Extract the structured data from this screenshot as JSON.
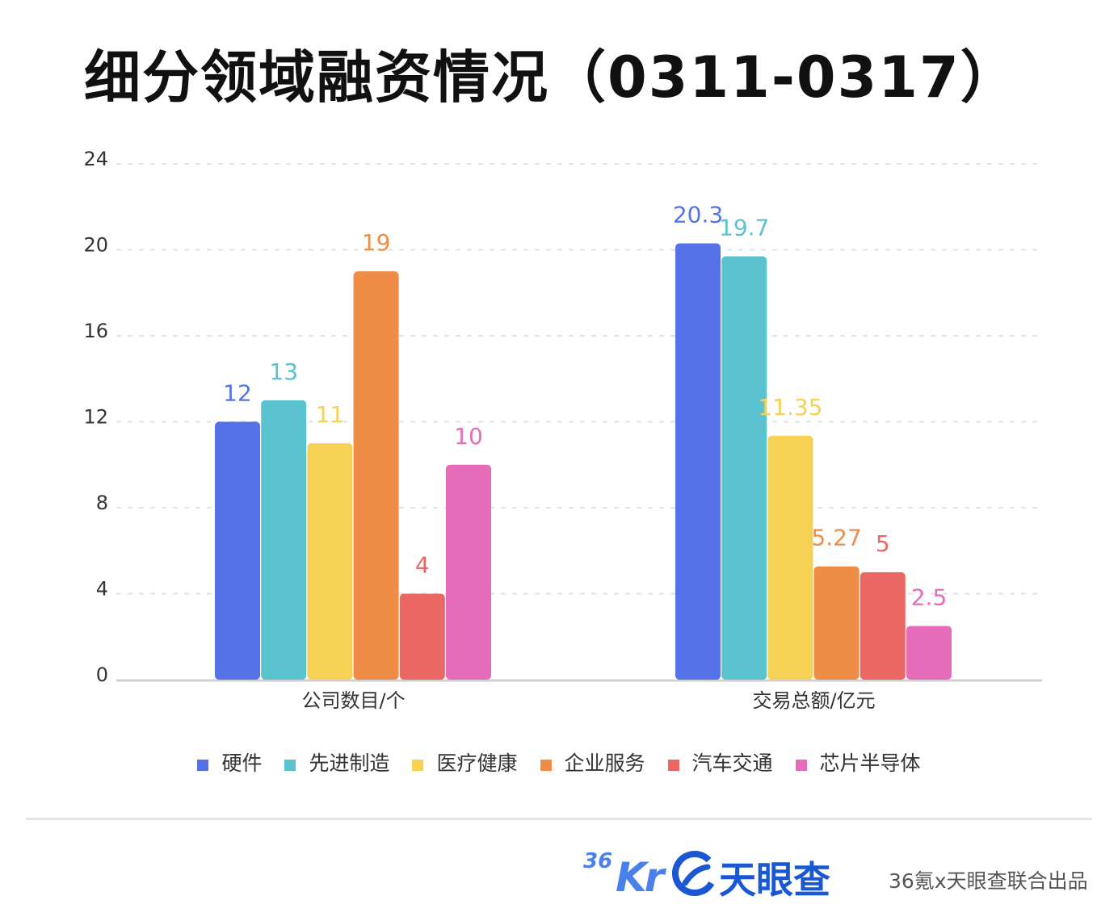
{
  "title": "细分领域融资情况（0311-0317）",
  "chart_data": {
    "type": "bar",
    "categories": [
      "公司数目/个",
      "交易总额/亿元"
    ],
    "series": [
      {
        "name": "硬件",
        "color": "#5672e8",
        "values": [
          12,
          20.3
        ],
        "labels": [
          "12",
          "20.3"
        ]
      },
      {
        "name": "先进制造",
        "color": "#5bc3d0",
        "values": [
          13,
          19.7
        ],
        "labels": [
          "13",
          "19.7"
        ]
      },
      {
        "name": "医疗健康",
        "color": "#f7d154",
        "values": [
          11,
          11.35
        ],
        "labels": [
          "11",
          "11.35"
        ]
      },
      {
        "name": "企业服务",
        "color": "#ef8c45",
        "values": [
          19,
          5.27
        ],
        "labels": [
          "19",
          "5.27"
        ]
      },
      {
        "name": "汽车交通",
        "color": "#eb6763",
        "values": [
          4,
          5
        ],
        "labels": [
          "4",
          "5"
        ]
      },
      {
        "name": "芯片半导体",
        "color": "#e66cba",
        "values": [
          10,
          2.5
        ],
        "labels": [
          "10",
          "2.5"
        ]
      }
    ],
    "yticks": [
      0,
      4,
      8,
      12,
      16,
      20,
      24
    ],
    "ylim": [
      0,
      24
    ],
    "grid": true,
    "legend_position": "bottom"
  },
  "footer": {
    "logo_36_small": "36",
    "logo_36_big": "Kr",
    "tianyancha_name": "天眼查",
    "credit": "36氪x天眼查联合出品",
    "logo_36_color": "#4b80ea",
    "tianyancha_color": "#1a57d3"
  }
}
